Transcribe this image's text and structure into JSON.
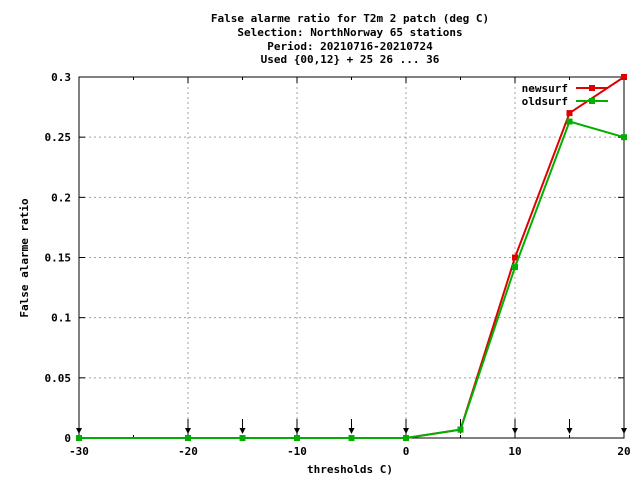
{
  "chart_data": {
    "type": "line",
    "title_lines": [
      "False alarme ratio  for T2m 2 patch (deg C)",
      "Selection: NorthNorway     65 stations",
      "Period: 20210716-20210724",
      "Used {00,12} + 25 26 ... 36"
    ],
    "xlabel": "thresholds C)",
    "ylabel": "False alarme ratio",
    "xlim": [
      -30,
      20
    ],
    "ylim": [
      0,
      0.3
    ],
    "x_ticks": [
      -30,
      -20,
      -10,
      0,
      10,
      20
    ],
    "x_tick_labels": [
      "-30",
      "-20",
      "-10",
      "0",
      "10",
      "20"
    ],
    "y_ticks": [
      0,
      0.05,
      0.1,
      0.15,
      0.2,
      0.25,
      0.3
    ],
    "y_tick_labels": [
      "0",
      "0.05",
      "0.1",
      "0.15",
      "0.2",
      "0.25",
      "0.3"
    ],
    "grid": true,
    "legend_position": "top-right",
    "threshold_arrows_x": [
      -30,
      -20,
      -15,
      -10,
      -5,
      0,
      5,
      10,
      15,
      20
    ],
    "x": [
      -30,
      -20,
      -15,
      -10,
      -5,
      0,
      5,
      10,
      15,
      20
    ],
    "series": [
      {
        "name": "newsurf",
        "color": "#e00000",
        "values": [
          0,
          0,
          0,
          0,
          0,
          0,
          0.007,
          0.15,
          0.27,
          0.3
        ]
      },
      {
        "name": "oldsurf",
        "color": "#00b000",
        "values": [
          0,
          0,
          0,
          0,
          0,
          0,
          0.007,
          0.142,
          0.263,
          0.25
        ]
      }
    ]
  }
}
